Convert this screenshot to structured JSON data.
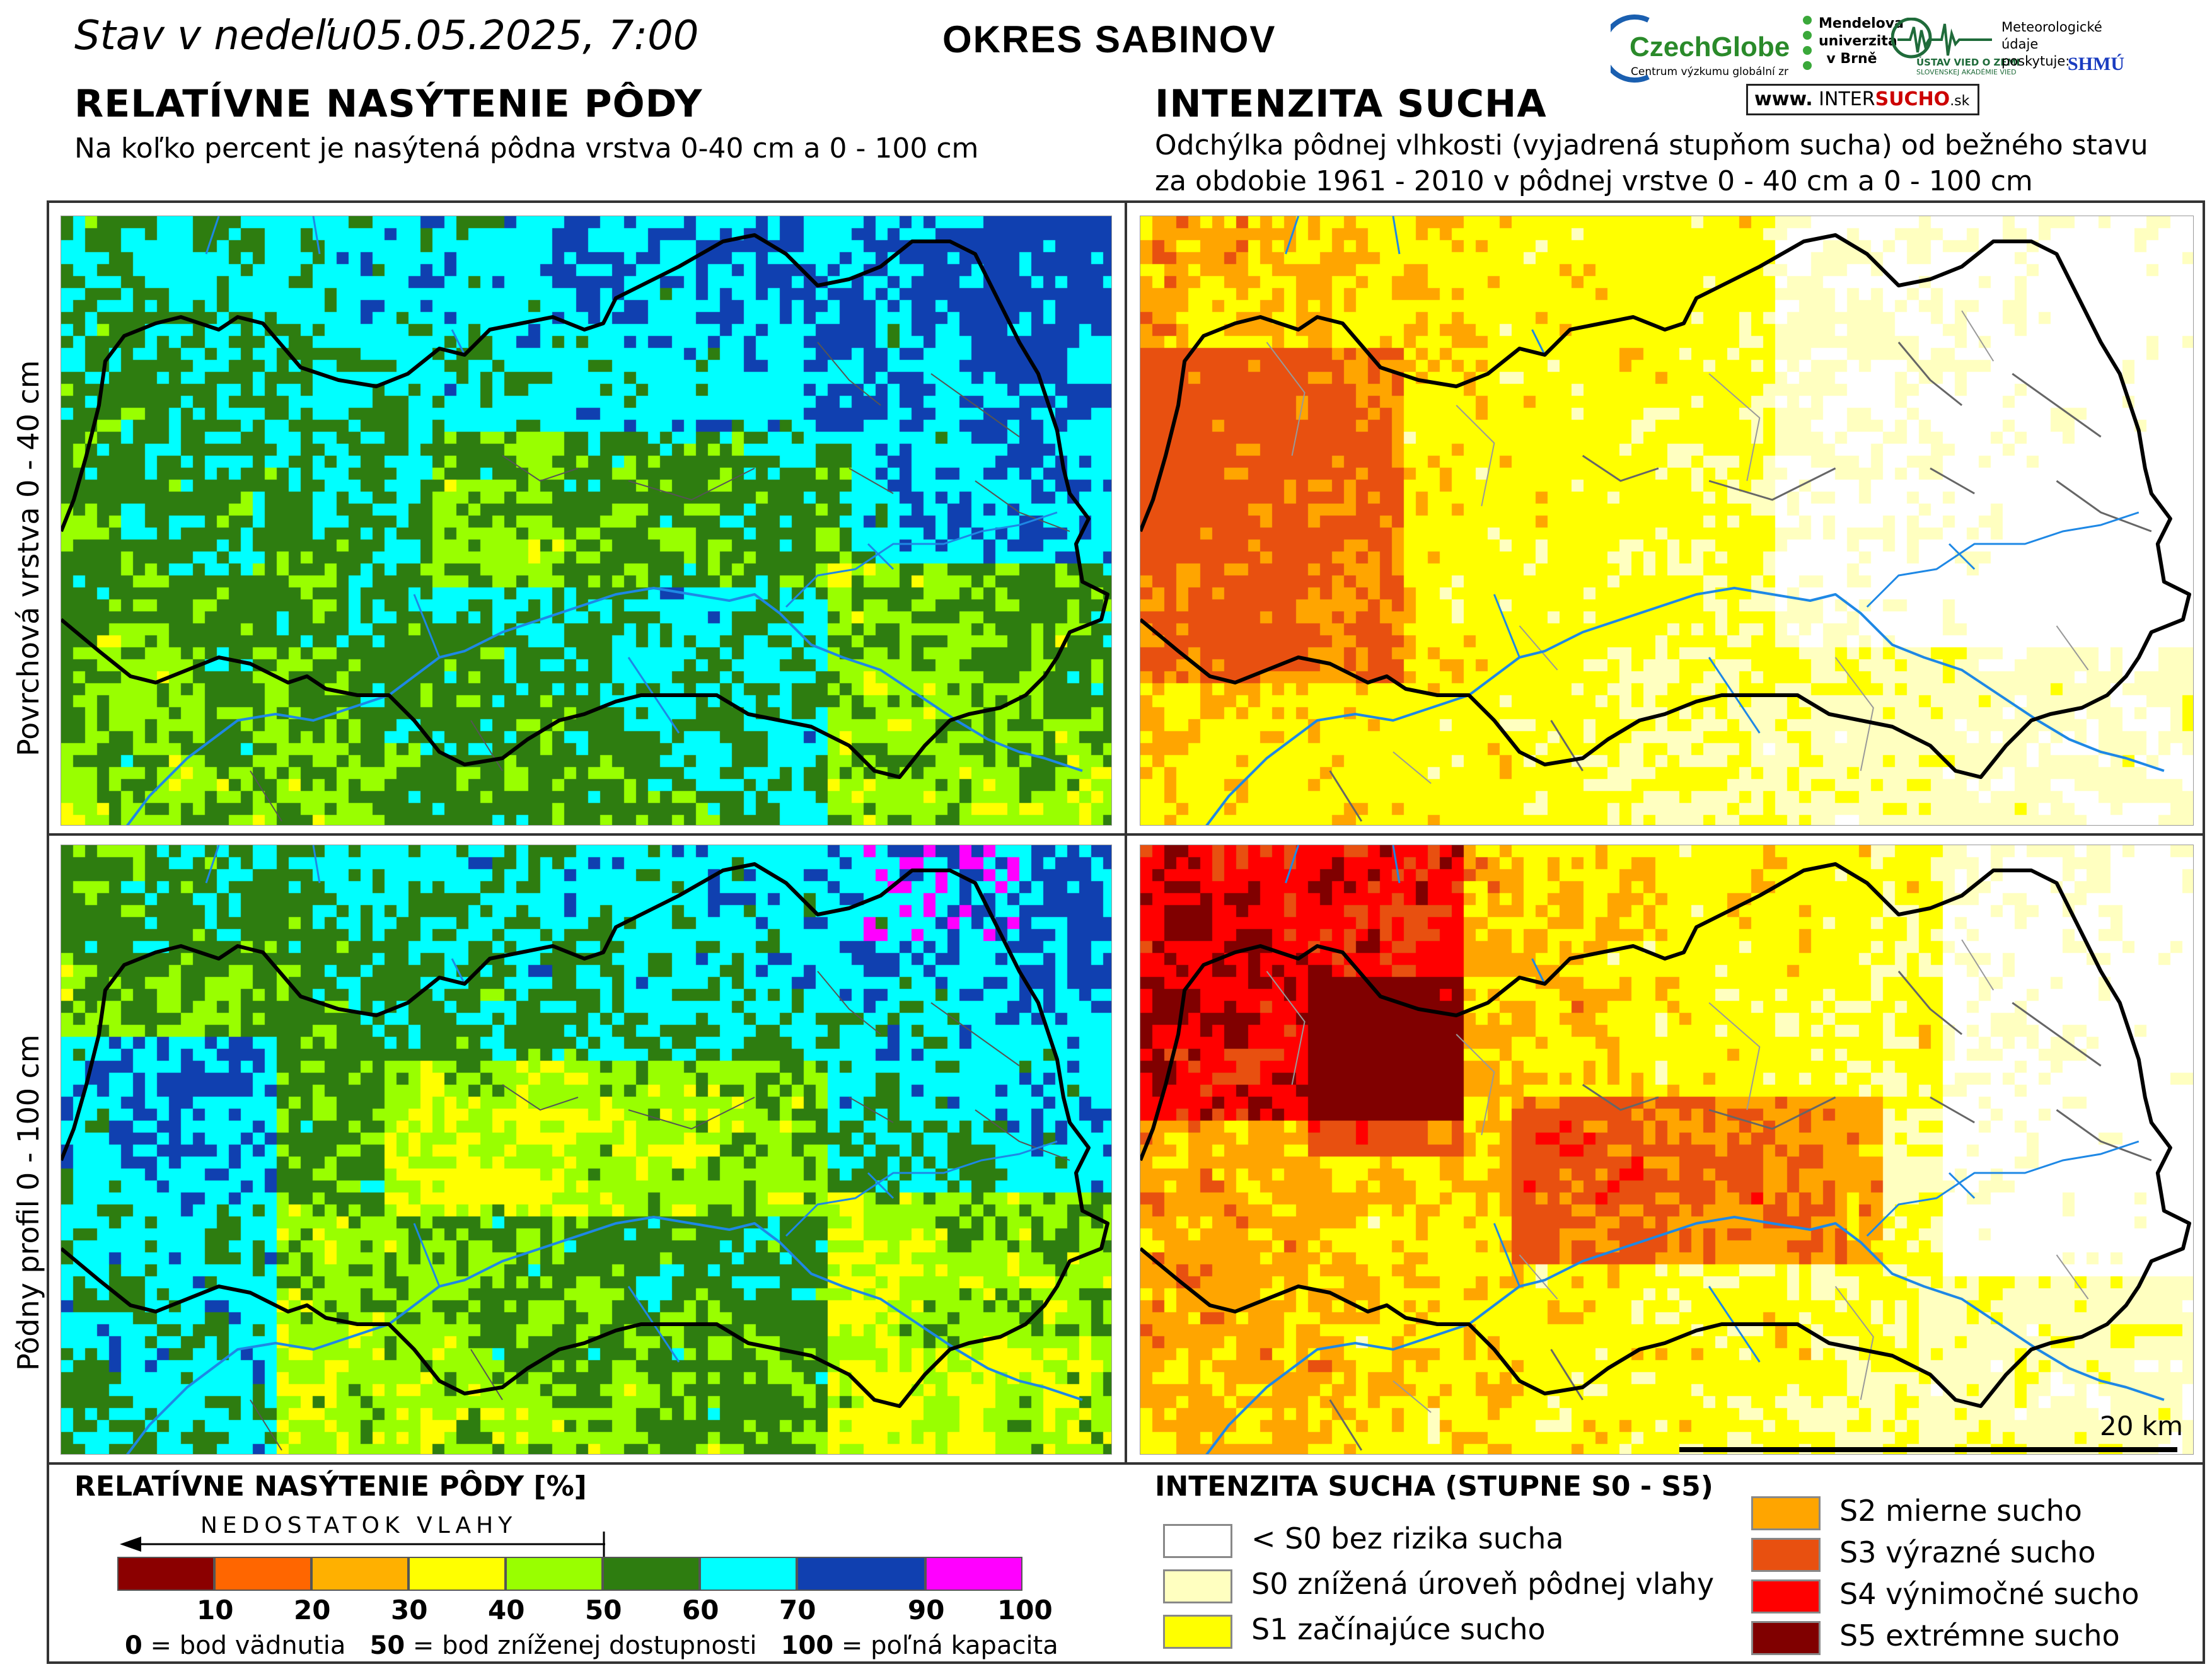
{
  "header": {
    "date_prefix": "Stav v nedeľu",
    "date_value": "05.05.2025, 7:00",
    "district": "OKRES  SABINOV"
  },
  "left_panel": {
    "title": "RELATÍVNE NASÝTENIE PÔDY",
    "subtitle": "Na koľko percent je nasýtená pôdna vrstva 0-40 cm a 0 - 100 cm"
  },
  "right_panel": {
    "title": "INTENZITA SUCHA",
    "subtitle_line1": "Odchýlka pôdnej vlhkosti (vyjadrená stupňom sucha) od bežného stavu",
    "subtitle_line2": "za obdobie 1961 - 2010 v pôdnej vrstve 0 - 40 cm a 0 - 100 cm"
  },
  "row_labels": {
    "top": "Povrchová vrstva 0 - 40 cm",
    "bottom": "Pôdny profil 0 - 100 cm"
  },
  "logos": {
    "czechglobe": "CzechGlobe",
    "czechglobe_sub": "Centrum výzkumu globální změny AV ČR, v. v. i.",
    "mendelu": "Mendelova univerzita v Brně",
    "uvz": "ÚSTAV VIED O ZEMI",
    "uvz_sub": "SLOVENSKEJ AKADÉMIE VIED",
    "meteo": "Meteorologické údaje poskytuje:",
    "shmu": "SHMÚ",
    "intersucho_prefix": "www.",
    "intersucho_main_a": "INTER",
    "intersucho_main_b": "SUCHO",
    "intersucho_suffix": ".sk"
  },
  "scale_bar": {
    "label": "20 km"
  },
  "saturation_legend": {
    "title": "RELATÍVNE NASÝTENIE PÔDY [%]",
    "arrow_label": "NEDOSTATOK VLAHY",
    "colors": [
      "#8b0000",
      "#ff6600",
      "#ffb000",
      "#ffff00",
      "#99ff00",
      "#2e7d10",
      "#00ffff",
      "#1040b0",
      "#ff00ff"
    ],
    "ticks": [
      "10",
      "20",
      "30",
      "40",
      "50",
      "60",
      "70",
      "90",
      "100"
    ],
    "note1_key": "0",
    "note1_text": " = bod vädnutia",
    "note2_key": "50",
    "note2_text": " = bod zníženej dostupnosti",
    "note3_key": "100",
    "note3_text": " = poľná kapacita"
  },
  "drought_legend": {
    "title": "INTENZITA SUCHA (STUPNE S0 - S5)",
    "classes": [
      {
        "label": "< S0 bez rizika sucha",
        "color": "#ffffff"
      },
      {
        "label": "S0 znížená úroveň pôdnej vlahy",
        "color": "#ffffc0"
      },
      {
        "label": "S1 začínajúce sucho",
        "color": "#ffff00"
      },
      {
        "label": "S2 mierne sucho",
        "color": "#ffa500"
      },
      {
        "label": "S3 výrazné sucho",
        "color": "#e85010"
      },
      {
        "label": "S4 výnimočné sucho",
        "color": "#ff0000"
      },
      {
        "label": "S5 extrémne sucho",
        "color": "#800000"
      }
    ]
  }
}
